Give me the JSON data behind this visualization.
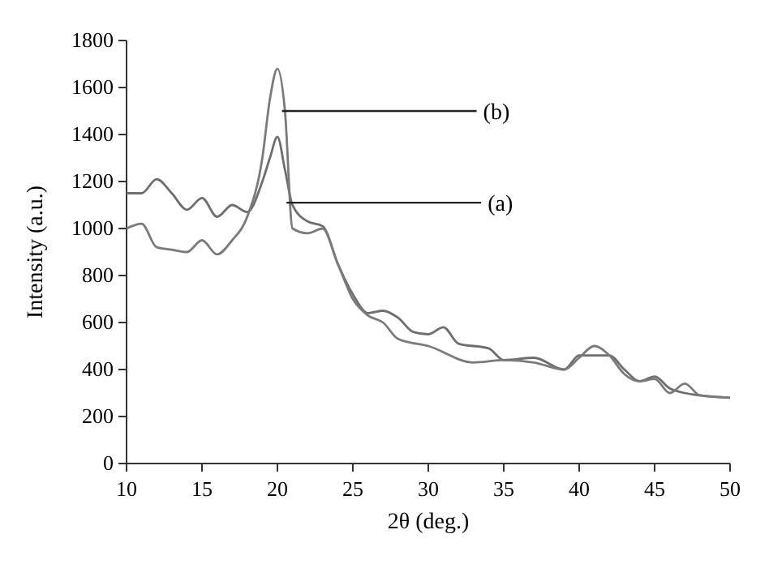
{
  "chart_data": {
    "type": "line",
    "xlabel": "2θ (deg.)",
    "ylabel": "Intensity (a.u.)",
    "xlim": [
      10,
      50
    ],
    "ylim": [
      0,
      1800
    ],
    "xticks": [
      10,
      15,
      20,
      25,
      30,
      35,
      40,
      45,
      50
    ],
    "yticks": [
      0,
      200,
      400,
      600,
      800,
      1000,
      1200,
      1400,
      1600,
      1800
    ],
    "grid": false,
    "series": [
      {
        "color": "#6e6e6e",
        "x": [
          10,
          11,
          12,
          13,
          14,
          15,
          16,
          17,
          18,
          19,
          19.5,
          20,
          20.5,
          21,
          22,
          23,
          24,
          25,
          26,
          27,
          28,
          29,
          30,
          31,
          32,
          34,
          35,
          37,
          39,
          40,
          41,
          42,
          43,
          44,
          45,
          46,
          47,
          48,
          50
        ],
        "values": [
          1150,
          1150,
          1210,
          1150,
          1080,
          1130,
          1050,
          1100,
          1070,
          1200,
          1300,
          1390,
          1250,
          1100,
          1030,
          1010,
          850,
          720,
          640,
          650,
          620,
          560,
          550,
          580,
          510,
          490,
          440,
          450,
          400,
          460,
          460,
          460,
          400,
          350,
          370,
          320,
          300,
          290,
          280
        ]
      },
      {
        "color": "#7a7a7a",
        "x": [
          10,
          11,
          12,
          13,
          14,
          15,
          16,
          17,
          18,
          19,
          19.5,
          20,
          20.5,
          21,
          22,
          23,
          24,
          25,
          26,
          27,
          28,
          30,
          33,
          35,
          37,
          39,
          40,
          41,
          42,
          43,
          44,
          45,
          46,
          47,
          48,
          50
        ],
        "values": [
          1000,
          1020,
          920,
          910,
          900,
          950,
          890,
          950,
          1050,
          1300,
          1550,
          1680,
          1500,
          1000,
          980,
          1000,
          850,
          700,
          630,
          600,
          530,
          500,
          430,
          440,
          430,
          400,
          450,
          500,
          460,
          380,
          350,
          360,
          300,
          340,
          290,
          280
        ]
      }
    ],
    "annotations": [
      {
        "text": "(b)",
        "x": 20.3,
        "y": 1500
      },
      {
        "text": "(a)",
        "x": 20.6,
        "y": 1110
      }
    ]
  }
}
